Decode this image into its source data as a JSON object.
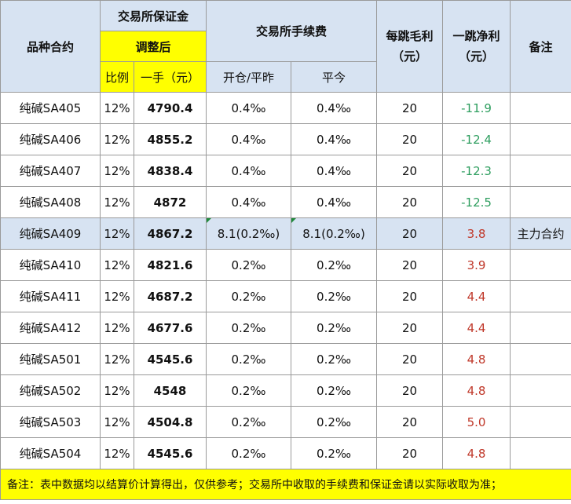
{
  "header": {
    "contract": "品种合约",
    "exchange_margin": "交易所保证金",
    "adjusted": "调整后",
    "ratio": "比例",
    "per_lot": "一手（元）",
    "exchange_fee": "交易所手续费",
    "open_close": "开仓/平昨",
    "close_today": "平今",
    "tick_gross": "每跳毛利（元）",
    "tick_net": "一跳净利（元）",
    "remark": "备注"
  },
  "rows": [
    {
      "contract": "纯碱SA405",
      "ratio": "12%",
      "margin": "4790.4",
      "fee_open": "0.4‰",
      "fee_today": "0.4‰",
      "gross": "20",
      "net": "-11.9",
      "remark": ""
    },
    {
      "contract": "纯碱SA406",
      "ratio": "12%",
      "margin": "4855.2",
      "fee_open": "0.4‰",
      "fee_today": "0.4‰",
      "gross": "20",
      "net": "-12.4",
      "remark": ""
    },
    {
      "contract": "纯碱SA407",
      "ratio": "12%",
      "margin": "4838.4",
      "fee_open": "0.4‰",
      "fee_today": "0.4‰",
      "gross": "20",
      "net": "-12.3",
      "remark": ""
    },
    {
      "contract": "纯碱SA408",
      "ratio": "12%",
      "margin": "4872",
      "fee_open": "0.4‰",
      "fee_today": "0.4‰",
      "gross": "20",
      "net": "-12.5",
      "remark": ""
    },
    {
      "contract": "纯碱SA409",
      "ratio": "12%",
      "margin": "4867.2",
      "fee_open": "8.1(0.2‰)",
      "fee_today": "8.1(0.2‰)",
      "gross": "20",
      "net": "3.8",
      "remark": "主力合约"
    },
    {
      "contract": "纯碱SA410",
      "ratio": "12%",
      "margin": "4821.6",
      "fee_open": "0.2‰",
      "fee_today": "0.2‰",
      "gross": "20",
      "net": "3.9",
      "remark": ""
    },
    {
      "contract": "纯碱SA411",
      "ratio": "12%",
      "margin": "4687.2",
      "fee_open": "0.2‰",
      "fee_today": "0.2‰",
      "gross": "20",
      "net": "4.4",
      "remark": ""
    },
    {
      "contract": "纯碱SA412",
      "ratio": "12%",
      "margin": "4677.6",
      "fee_open": "0.2‰",
      "fee_today": "0.2‰",
      "gross": "20",
      "net": "4.4",
      "remark": ""
    },
    {
      "contract": "纯碱SA501",
      "ratio": "12%",
      "margin": "4545.6",
      "fee_open": "0.2‰",
      "fee_today": "0.2‰",
      "gross": "20",
      "net": "4.8",
      "remark": ""
    },
    {
      "contract": "纯碱SA502",
      "ratio": "12%",
      "margin": "4548",
      "fee_open": "0.2‰",
      "fee_today": "0.2‰",
      "gross": "20",
      "net": "4.8",
      "remark": ""
    },
    {
      "contract": "纯碱SA503",
      "ratio": "12%",
      "margin": "4504.8",
      "fee_open": "0.2‰",
      "fee_today": "0.2‰",
      "gross": "20",
      "net": "5.0",
      "remark": ""
    },
    {
      "contract": "纯碱SA504",
      "ratio": "12%",
      "margin": "4545.6",
      "fee_open": "0.2‰",
      "fee_today": "0.2‰",
      "gross": "20",
      "net": "4.8",
      "remark": ""
    }
  ],
  "footer": "备注：表中数据均以结算价计算得出，仅供参考；交易所中收取的手续费和保证金请以实际收取为准；",
  "colors": {
    "header_bg": "#d7e3f2",
    "highlight": "#ffff00",
    "positive": "#c0392b",
    "negative": "#2e9e5f"
  }
}
